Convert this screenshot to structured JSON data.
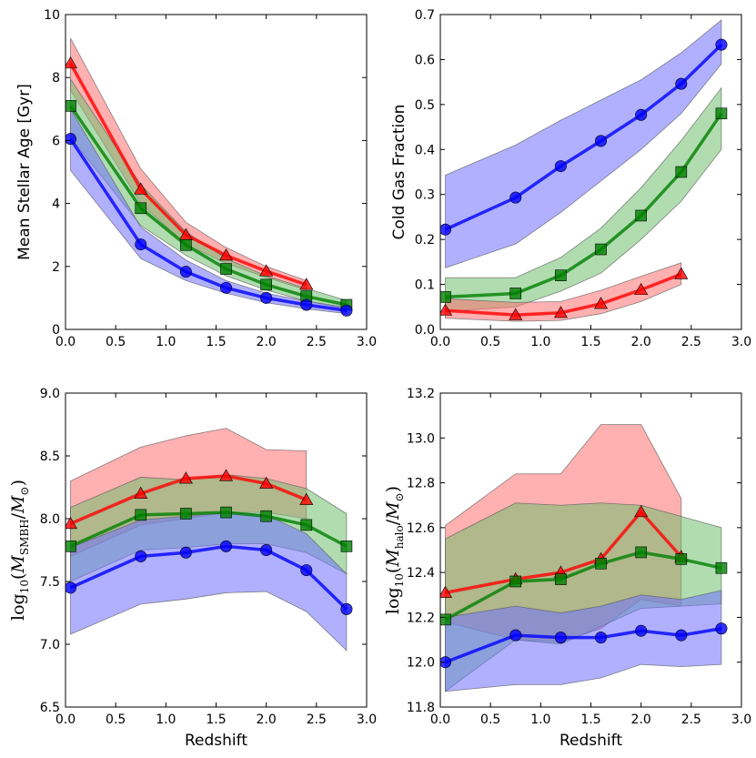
{
  "colors": {
    "red": "#ff0000",
    "green": "#008000",
    "blue": "#0000ff",
    "red_fill": "#ff7070",
    "green_fill": "#6fbf6f",
    "blue_fill": "#7070ff"
  },
  "chart_data": [
    {
      "type": "line",
      "panel": "top-left",
      "title": "",
      "xlabel": "",
      "ylabel": "Mean Stellar Age [Gyr]",
      "xlim": [
        0.0,
        3.0
      ],
      "ylim": [
        0,
        10
      ],
      "xticks": [
        "0.0",
        "0.5",
        "1.0",
        "1.5",
        "2.0",
        "2.5",
        "3.0"
      ],
      "yticks": [
        "0",
        "2",
        "4",
        "6",
        "8",
        "10"
      ],
      "series": [
        {
          "name": "red",
          "marker": "triangle",
          "x": [
            0.05,
            0.75,
            1.2,
            1.6,
            2.0,
            2.4
          ],
          "y": [
            8.45,
            4.45,
            3.0,
            2.35,
            1.85,
            1.42
          ],
          "lower": [
            7.6,
            4.0,
            2.7,
            2.1,
            1.65,
            1.25
          ],
          "upper": [
            9.25,
            5.1,
            3.4,
            2.6,
            2.0,
            1.55
          ]
        },
        {
          "name": "green",
          "marker": "square",
          "x": [
            0.05,
            0.75,
            1.2,
            1.6,
            2.0,
            2.4,
            2.8
          ],
          "y": [
            7.1,
            3.85,
            2.68,
            1.92,
            1.42,
            1.05,
            0.78
          ],
          "lower": [
            6.1,
            3.3,
            2.35,
            1.7,
            1.25,
            0.9,
            0.65
          ],
          "upper": [
            7.95,
            4.6,
            3.1,
            2.25,
            1.7,
            1.3,
            0.92
          ]
        },
        {
          "name": "blue",
          "marker": "circle",
          "x": [
            0.05,
            0.75,
            1.2,
            1.6,
            2.0,
            2.4,
            2.8
          ],
          "y": [
            6.05,
            2.7,
            1.83,
            1.32,
            1.0,
            0.78,
            0.6
          ],
          "lower": [
            5.05,
            2.25,
            1.55,
            1.15,
            0.85,
            0.65,
            0.5
          ],
          "upper": [
            7.0,
            3.25,
            2.2,
            1.55,
            1.15,
            0.9,
            0.7
          ]
        }
      ]
    },
    {
      "type": "line",
      "panel": "top-right",
      "title": "",
      "xlabel": "",
      "ylabel": "Cold Gas Fraction",
      "xlim": [
        0.0,
        3.0
      ],
      "ylim": [
        0.0,
        0.7
      ],
      "xticks": [
        "0.0",
        "0.5",
        "1.0",
        "1.5",
        "2.0",
        "2.5",
        "3.0"
      ],
      "yticks": [
        "0.0",
        "0.1",
        "0.2",
        "0.3",
        "0.4",
        "0.5",
        "0.6",
        "0.7"
      ],
      "series": [
        {
          "name": "blue",
          "marker": "circle",
          "x": [
            0.05,
            0.75,
            1.2,
            1.6,
            2.0,
            2.4,
            2.8
          ],
          "y": [
            0.222,
            0.293,
            0.363,
            0.419,
            0.477,
            0.546,
            0.633
          ],
          "lower": [
            0.137,
            0.19,
            0.26,
            0.33,
            0.4,
            0.48,
            0.59
          ],
          "upper": [
            0.343,
            0.41,
            0.465,
            0.51,
            0.555,
            0.615,
            0.688
          ]
        },
        {
          "name": "green",
          "marker": "square",
          "x": [
            0.05,
            0.75,
            1.2,
            1.6,
            2.0,
            2.4,
            2.8
          ],
          "y": [
            0.072,
            0.08,
            0.12,
            0.178,
            0.253,
            0.35,
            0.48
          ],
          "lower": [
            0.04,
            0.05,
            0.085,
            0.125,
            0.2,
            0.285,
            0.4
          ],
          "upper": [
            0.115,
            0.115,
            0.16,
            0.225,
            0.315,
            0.42,
            0.537
          ]
        },
        {
          "name": "red",
          "marker": "triangle",
          "x": [
            0.05,
            0.75,
            1.2,
            1.6,
            2.0,
            2.4
          ],
          "y": [
            0.042,
            0.032,
            0.037,
            0.057,
            0.088,
            0.123
          ],
          "lower": [
            0.025,
            0.018,
            0.02,
            0.035,
            0.062,
            0.1
          ],
          "upper": [
            0.068,
            0.06,
            0.062,
            0.087,
            0.118,
            0.148
          ]
        }
      ]
    },
    {
      "type": "line",
      "panel": "bottom-left",
      "title": "",
      "xlabel": "Redshift",
      "ylabel": "log10(M_SMBH/M_⊙)",
      "ylabel_parts": {
        "prefix": "log",
        "base": "10",
        "open": "(",
        "M": "M",
        "sub1": "SMBH",
        "slash": "/",
        "sub2": "⊙",
        "close": ")"
      },
      "xlim": [
        0.0,
        3.0
      ],
      "ylim": [
        6.5,
        9.0
      ],
      "xticks": [
        "0.0",
        "0.5",
        "1.0",
        "1.5",
        "2.0",
        "2.5",
        "3.0"
      ],
      "yticks": [
        "6.5",
        "7.0",
        "7.5",
        "8.0",
        "8.5",
        "9.0"
      ],
      "series": [
        {
          "name": "red",
          "marker": "triangle",
          "x": [
            0.05,
            0.75,
            1.2,
            1.6,
            2.0,
            2.4
          ],
          "y": [
            7.96,
            8.2,
            8.32,
            8.34,
            8.28,
            8.15
          ],
          "lower": [
            7.7,
            7.95,
            8.0,
            8.05,
            8.05,
            8.0
          ],
          "upper": [
            8.3,
            8.57,
            8.66,
            8.72,
            8.55,
            8.54
          ]
        },
        {
          "name": "green",
          "marker": "square",
          "x": [
            0.05,
            0.75,
            1.2,
            1.6,
            2.0,
            2.4,
            2.8
          ],
          "y": [
            7.78,
            8.03,
            8.04,
            8.05,
            8.02,
            7.95,
            7.78
          ],
          "lower": [
            7.5,
            7.75,
            7.77,
            7.8,
            7.8,
            7.73,
            7.56
          ],
          "upper": [
            8.09,
            8.33,
            8.31,
            8.35,
            8.32,
            8.24,
            8.04
          ]
        },
        {
          "name": "blue",
          "marker": "circle",
          "x": [
            0.05,
            0.75,
            1.2,
            1.6,
            2.0,
            2.4,
            2.8
          ],
          "y": [
            7.45,
            7.7,
            7.73,
            7.78,
            7.75,
            7.59,
            7.28
          ],
          "lower": [
            7.08,
            7.32,
            7.36,
            7.41,
            7.42,
            7.26,
            6.95
          ],
          "upper": [
            7.77,
            7.99,
            8.02,
            8.05,
            8.03,
            7.88,
            7.56
          ]
        }
      ]
    },
    {
      "type": "line",
      "panel": "bottom-right",
      "title": "",
      "xlabel": "Redshift",
      "ylabel": "log10(M_halo/M_⊙)",
      "ylabel_parts": {
        "prefix": "log",
        "base": "10",
        "open": "(",
        "M": "M",
        "sub1": "halo",
        "slash": "/",
        "sub2": "⊙",
        "close": ")"
      },
      "xlim": [
        0.0,
        3.0
      ],
      "ylim": [
        11.8,
        13.2
      ],
      "xticks": [
        "0.0",
        "0.5",
        "1.0",
        "1.5",
        "2.0",
        "2.5",
        "3.0"
      ],
      "yticks": [
        "11.8",
        "12.0",
        "12.2",
        "12.4",
        "12.6",
        "12.8",
        "13.0",
        "13.2"
      ],
      "series": [
        {
          "name": "red",
          "marker": "triangle",
          "x": [
            0.05,
            0.75,
            1.2,
            1.6,
            2.0,
            2.4
          ],
          "y": [
            12.31,
            12.37,
            12.4,
            12.46,
            12.67,
            12.47
          ],
          "lower": [
            12.18,
            12.1,
            12.09,
            12.15,
            12.28,
            12.25
          ],
          "upper": [
            12.61,
            12.84,
            12.84,
            13.06,
            13.06,
            12.73
          ]
        },
        {
          "name": "green",
          "marker": "square",
          "x": [
            0.05,
            0.75,
            1.2,
            1.6,
            2.0,
            2.4,
            2.8
          ],
          "y": [
            12.19,
            12.36,
            12.37,
            12.44,
            12.49,
            12.46,
            12.42
          ],
          "lower": [
            11.87,
            12.1,
            12.08,
            12.16,
            12.24,
            12.25,
            12.26
          ],
          "upper": [
            12.55,
            12.71,
            12.7,
            12.71,
            12.7,
            12.65,
            12.6
          ]
        },
        {
          "name": "blue",
          "marker": "circle",
          "x": [
            0.05,
            0.75,
            1.2,
            1.6,
            2.0,
            2.4,
            2.8
          ],
          "y": [
            12.0,
            12.12,
            12.11,
            12.11,
            12.14,
            12.12,
            12.15
          ],
          "lower": [
            11.87,
            11.9,
            11.9,
            11.93,
            11.99,
            11.98,
            11.99
          ],
          "upper": [
            12.2,
            12.25,
            12.22,
            12.25,
            12.3,
            12.28,
            12.32
          ]
        }
      ]
    }
  ]
}
